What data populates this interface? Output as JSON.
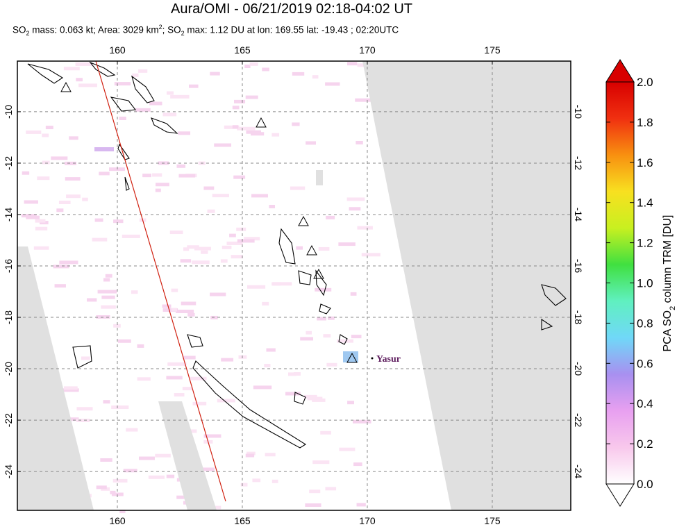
{
  "title": "Aura/OMI - 06/21/2019 02:18-04:02 UT",
  "subtitle": [
    {
      "text": "SO",
      "style": "normal"
    },
    {
      "text": "2",
      "style": "sub"
    },
    {
      "text": " mass: 0.063 kt; Area: 3029 km",
      "style": "normal"
    },
    {
      "text": "2",
      "style": "sup"
    },
    {
      "text": "; SO",
      "style": "normal"
    },
    {
      "text": "2",
      "style": "sub"
    },
    {
      "text": " max: 1.12 DU at lon: 169.55 lat: -19.43 ; 02:20UTC",
      "style": "normal"
    }
  ],
  "map": {
    "xlim": [
      156,
      178.14
    ],
    "ylim": [
      -25.51,
      -8.03
    ],
    "xticks": [
      160,
      165,
      170,
      175
    ],
    "yticks": [
      -10,
      -12,
      -14,
      -16,
      -18,
      -20,
      -22,
      -24
    ],
    "grid": true
  },
  "annotation": "Yasur",
  "colorbar": {
    "label": [
      {
        "text": "PCA SO",
        "style": "normal"
      },
      {
        "text": "2",
        "style": "sub"
      },
      {
        "text": " column TRM [DU]",
        "style": "normal"
      }
    ],
    "lim": [
      0,
      2
    ],
    "ticks": [
      {
        "value": 0,
        "label": "0.0"
      },
      0.2,
      0.4,
      0.6,
      0.8,
      {
        "value": 1,
        "label": "1.0"
      },
      1.2,
      1.4,
      1.6,
      1.8,
      {
        "value": 2,
        "label": "2.0"
      }
    ],
    "colors": [
      "#ffffff",
      "#f8c8ec",
      "#e8a0f0",
      "#a890f0",
      "#70d8f8",
      "#60f0c0",
      "#40e040",
      "#c8f020",
      "#f8e020",
      "#f89010",
      "#f03010",
      "#d80000"
    ]
  }
}
